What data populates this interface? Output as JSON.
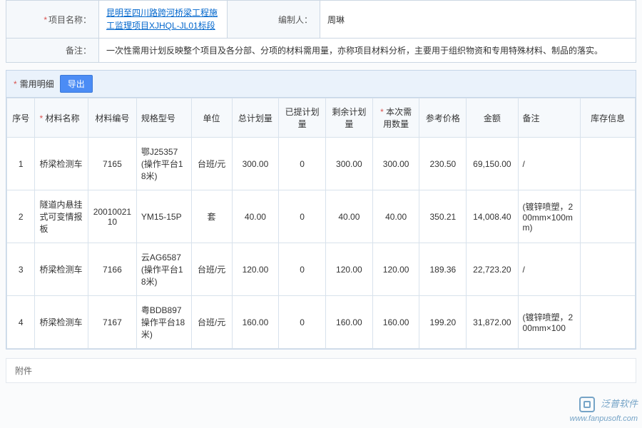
{
  "header": {
    "project_label": "项目名称：",
    "project_link": "昆明至四川路跨河桥梁工程施工监理项目XJHQL-JL01标段",
    "compiler_label": "编制人：",
    "compiler_value": "周琳",
    "remark_label": "备注：",
    "remark_value": "一次性需用计划反映整个项目及各分部、分项的材料需用量，亦称项目材料分析，主要用于组织物资和专用特殊材料、制品的落实。"
  },
  "detail": {
    "section_title": "需用明细",
    "export_btn": "导出",
    "columns": {
      "seq": "序号",
      "name": "材料名称",
      "code": "材料编号",
      "spec": "规格型号",
      "unit": "单位",
      "total": "总计划量",
      "issued": "已提计划量",
      "remain": "剩余计划量",
      "current": "本次需用数量",
      "price": "参考价格",
      "amount": "金额",
      "note": "备注",
      "stock": "库存信息"
    },
    "rows": [
      {
        "seq": "1",
        "name": "桥梁检测车",
        "code": "7165",
        "spec": "鄂J25357 (操作平台18米)",
        "unit": "台班/元",
        "total": "300.00",
        "issued": "0",
        "remain": "300.00",
        "current": "300.00",
        "price": "230.50",
        "amount": "69,150.00",
        "note": "/",
        "stock": ""
      },
      {
        "seq": "2",
        "name": "隧道内悬挂式可变情报板",
        "code": "2001002110",
        "spec": "YM15-15P",
        "unit": "套",
        "total": "40.00",
        "issued": "0",
        "remain": "40.00",
        "current": "40.00",
        "price": "350.21",
        "amount": "14,008.40",
        "note": "(镀锌喷塑，200mm×100mm)",
        "stock": ""
      },
      {
        "seq": "3",
        "name": "桥梁检测车",
        "code": "7166",
        "spec": "云AG6587 (操作平台18米)",
        "unit": "台班/元",
        "total": "120.00",
        "issued": "0",
        "remain": "120.00",
        "current": "120.00",
        "price": "189.36",
        "amount": "22,723.20",
        "note": "/",
        "stock": ""
      },
      {
        "seq": "4",
        "name": "桥梁检测车",
        "code": "7167",
        "spec": "粤BDB897操作平台18米)",
        "unit": "台班/元",
        "total": "160.00",
        "issued": "0",
        "remain": "160.00",
        "current": "160.00",
        "price": "199.20",
        "amount": "31,872.00",
        "note": "(镀锌喷塑，200mm×100",
        "stock": ""
      }
    ]
  },
  "attachment_label": "附件",
  "watermark": {
    "brand": "泛普软件",
    "url": "www.fanpusoft.com"
  }
}
